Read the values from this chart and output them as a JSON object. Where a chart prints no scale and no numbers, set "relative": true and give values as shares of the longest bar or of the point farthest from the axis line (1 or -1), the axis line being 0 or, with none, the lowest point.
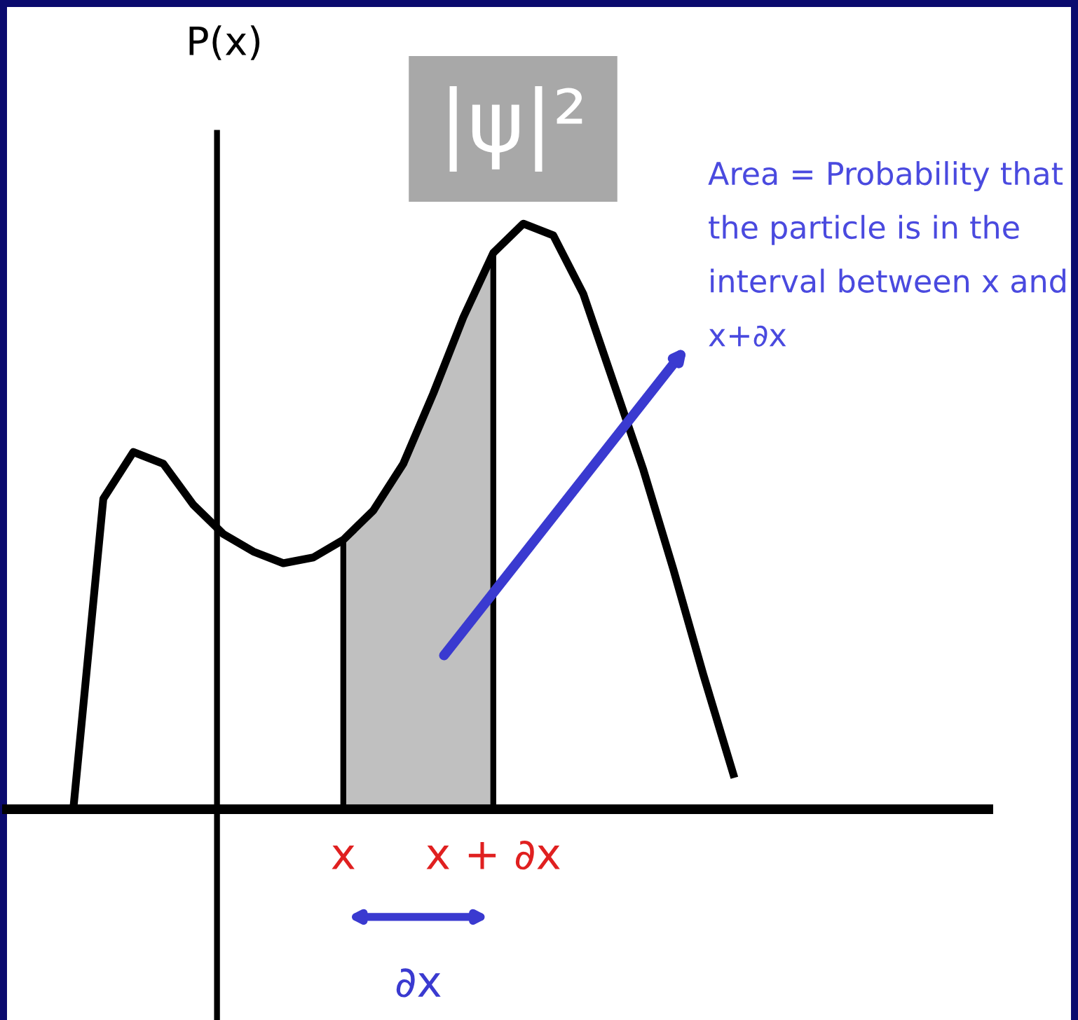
{
  "chart_data": {
    "type": "line",
    "title": "|ψ|²",
    "ylabel": "P(x)",
    "relative": true,
    "categories": [
      null,
      null,
      null,
      null,
      null,
      null,
      null,
      null,
      null,
      "x",
      null,
      null,
      null,
      null,
      "x + ∂x",
      null,
      null,
      null,
      null,
      null,
      null,
      null,
      null
    ],
    "series": [
      {
        "color": "#000000",
        "values": [
          0,
          0.53,
          0.61,
          0.59,
          0.52,
          0.47,
          0.44,
          0.42,
          0.43,
          0.46,
          0.51,
          0.59,
          0.71,
          0.84,
          0.95,
          1,
          0.98,
          0.88,
          0.73,
          0.58,
          0.41,
          0.23,
          0.06
        ]
      },
      {
        "type": "area",
        "color": "#c0c0c0",
        "values": [
          null,
          null,
          null,
          null,
          null,
          null,
          null,
          null,
          null,
          0.46,
          0.51,
          0.59,
          0.71,
          0.84,
          0.95,
          null,
          null,
          null,
          null,
          null,
          null,
          null,
          null
        ]
      }
    ],
    "annotations": [
      "Area = Probability that the particle is in the interval between x and x+∂x",
      "∂x"
    ],
    "grid": false,
    "legend": false,
    "marker": "none",
    "line_style": "solid"
  }
}
